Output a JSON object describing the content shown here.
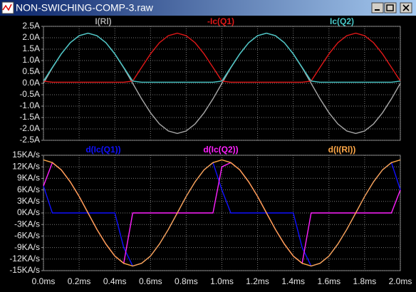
{
  "window": {
    "title": "NON-SWICHING-COMP-3.raw"
  },
  "chart_data": [
    {
      "type": "line",
      "grid": true,
      "x": [
        0,
        0.05,
        0.1,
        0.15,
        0.2,
        0.25,
        0.3,
        0.35,
        0.4,
        0.45,
        0.5,
        0.55,
        0.6,
        0.65,
        0.7,
        0.75,
        0.8,
        0.85,
        0.9,
        0.95,
        1.0,
        1.05,
        1.1,
        1.15,
        1.2,
        1.25,
        1.3,
        1.35,
        1.4,
        1.45,
        1.5,
        1.55,
        1.6,
        1.65,
        1.7,
        1.75,
        1.8,
        1.85,
        1.9,
        1.95,
        2.0
      ],
      "xlim": [
        0,
        2
      ],
      "xticks": [
        0,
        0.2,
        0.4,
        0.6,
        0.8,
        1.0,
        1.2,
        1.4,
        1.6,
        1.8,
        2.0
      ],
      "ylim": [
        -2.5,
        2.5
      ],
      "yticks": [
        {
          "value": 2.5,
          "label": "2.5A"
        },
        {
          "value": 2.0,
          "label": "2.0A"
        },
        {
          "value": 1.5,
          "label": "1.5A"
        },
        {
          "value": 1.0,
          "label": "1.0A"
        },
        {
          "value": 0.5,
          "label": "0.5A"
        },
        {
          "value": 0,
          "label": "0.0A"
        },
        {
          "value": -0.5,
          "label": "-0.5A"
        },
        {
          "value": -1.0,
          "label": "-1.0A"
        },
        {
          "value": -1.5,
          "label": "-1.5A"
        },
        {
          "value": -2.0,
          "label": "-2.0A"
        },
        {
          "value": -2.5,
          "label": "-2.5A"
        }
      ],
      "series": [
        {
          "name": "I(Rl)",
          "color": "#a8a8a8",
          "values": [
            0,
            0.68,
            1.29,
            1.78,
            2.09,
            2.2,
            2.09,
            1.78,
            1.29,
            0.68,
            0,
            -0.68,
            -1.29,
            -1.78,
            -2.09,
            -2.2,
            -2.09,
            -1.78,
            -1.29,
            -0.68,
            0,
            0.68,
            1.29,
            1.78,
            2.09,
            2.2,
            2.09,
            1.78,
            1.29,
            0.68,
            0,
            -0.68,
            -1.29,
            -1.78,
            -2.09,
            -2.2,
            -2.09,
            -1.78,
            -1.29,
            -0.68,
            0
          ]
        },
        {
          "name": "-Ic(Q1)",
          "color": "#e01818",
          "values": [
            0.1,
            0.05,
            0.05,
            0.05,
            0.05,
            0.05,
            0.05,
            0.05,
            0.05,
            0.05,
            0.1,
            0.7,
            1.29,
            1.78,
            2.09,
            2.2,
            2.09,
            1.78,
            1.29,
            0.7,
            0.1,
            0.05,
            0.05,
            0.05,
            0.05,
            0.05,
            0.05,
            0.05,
            0.05,
            0.05,
            0.1,
            0.7,
            1.29,
            1.78,
            2.09,
            2.2,
            2.09,
            1.78,
            1.29,
            0.7,
            0.1
          ]
        },
        {
          "name": "Ic(Q2)",
          "color": "#48c8c8",
          "values": [
            0.1,
            0.7,
            1.29,
            1.78,
            2.09,
            2.2,
            2.09,
            1.78,
            1.29,
            0.7,
            0.1,
            0.05,
            0.05,
            0.05,
            0.05,
            0.05,
            0.05,
            0.05,
            0.05,
            0.05,
            0.1,
            0.7,
            1.29,
            1.78,
            2.09,
            2.2,
            2.09,
            1.78,
            1.29,
            0.7,
            0.1,
            0.05,
            0.05,
            0.05,
            0.05,
            0.05,
            0.05,
            0.05,
            0.05,
            0.05,
            0.1
          ]
        }
      ]
    },
    {
      "type": "line",
      "grid": true,
      "x": [
        0,
        0.05,
        0.1,
        0.15,
        0.2,
        0.25,
        0.3,
        0.35,
        0.4,
        0.45,
        0.5,
        0.55,
        0.6,
        0.65,
        0.7,
        0.75,
        0.8,
        0.85,
        0.9,
        0.95,
        1.0,
        1.05,
        1.1,
        1.15,
        1.2,
        1.25,
        1.3,
        1.35,
        1.4,
        1.45,
        1.5,
        1.55,
        1.6,
        1.65,
        1.7,
        1.75,
        1.8,
        1.85,
        1.9,
        1.95,
        2.0
      ],
      "xlim": [
        0,
        2
      ],
      "xticks": [
        {
          "value": 0,
          "label": "0.0ms"
        },
        {
          "value": 0.2,
          "label": "0.2ms"
        },
        {
          "value": 0.4,
          "label": "0.4ms"
        },
        {
          "value": 0.6,
          "label": "0.6ms"
        },
        {
          "value": 0.8,
          "label": "0.8ms"
        },
        {
          "value": 1.0,
          "label": "1.0ms"
        },
        {
          "value": 1.2,
          "label": "1.2ms"
        },
        {
          "value": 1.4,
          "label": "1.4ms"
        },
        {
          "value": 1.6,
          "label": "1.6ms"
        },
        {
          "value": 1.8,
          "label": "1.8ms"
        },
        {
          "value": 2.0,
          "label": "2.0ms"
        }
      ],
      "ylim": [
        -15,
        15
      ],
      "yticks": [
        {
          "value": 15,
          "label": "15KA/s"
        },
        {
          "value": 12,
          "label": "12KA/s"
        },
        {
          "value": 9,
          "label": "9KA/s"
        },
        {
          "value": 6,
          "label": "6KA/s"
        },
        {
          "value": 3,
          "label": "3KA/s"
        },
        {
          "value": 0,
          "label": "0KA/s"
        },
        {
          "value": -3,
          "label": "-3KA/s"
        },
        {
          "value": -6,
          "label": "-6KA/s"
        },
        {
          "value": -9,
          "label": "-9KA/s"
        },
        {
          "value": -12,
          "label": "-12KA/s"
        },
        {
          "value": -15,
          "label": "-15KA/s"
        }
      ],
      "series": [
        {
          "name": "d(Ic(Q1))",
          "color": "#1010ff",
          "values": [
            7,
            0,
            0,
            0,
            0,
            0,
            0,
            0,
            0,
            -9,
            -13.8,
            -13.1,
            -11.2,
            -8.1,
            -4.3,
            0,
            4.3,
            8.1,
            11.2,
            13.1,
            6,
            0,
            0,
            0,
            0,
            0,
            0,
            0,
            0,
            -9,
            -13.8,
            -13.1,
            -11.2,
            -8.1,
            -4.3,
            0,
            4.3,
            8.1,
            11.2,
            13.1,
            6
          ]
        },
        {
          "name": "d(Ic(Q2))",
          "color": "#ff20ff",
          "values": [
            7,
            13.1,
            11.2,
            8.1,
            4.3,
            0,
            -4.3,
            -8.1,
            -11.2,
            -13.1,
            0,
            0,
            0,
            0,
            0,
            0,
            0,
            0,
            0,
            0,
            12,
            13.1,
            11.2,
            8.1,
            4.3,
            0,
            -4.3,
            -8.1,
            -11.2,
            -13.1,
            0,
            0,
            0,
            0,
            0,
            0,
            0,
            0,
            0,
            0,
            6
          ]
        },
        {
          "name": "d(I(Rl))",
          "color": "#ffa848",
          "values": [
            13.8,
            13.1,
            11.2,
            8.1,
            4.3,
            0,
            -4.3,
            -8.1,
            -11.2,
            -13.1,
            -13.8,
            -13.1,
            -11.2,
            -8.1,
            -4.3,
            0,
            4.3,
            8.1,
            11.2,
            13.1,
            13.8,
            13.1,
            11.2,
            8.1,
            4.3,
            0,
            -4.3,
            -8.1,
            -11.2,
            -13.1,
            -13.8,
            -13.1,
            -11.2,
            -8.1,
            -4.3,
            0,
            4.3,
            8.1,
            11.2,
            13.1,
            13.8
          ]
        }
      ]
    }
  ]
}
